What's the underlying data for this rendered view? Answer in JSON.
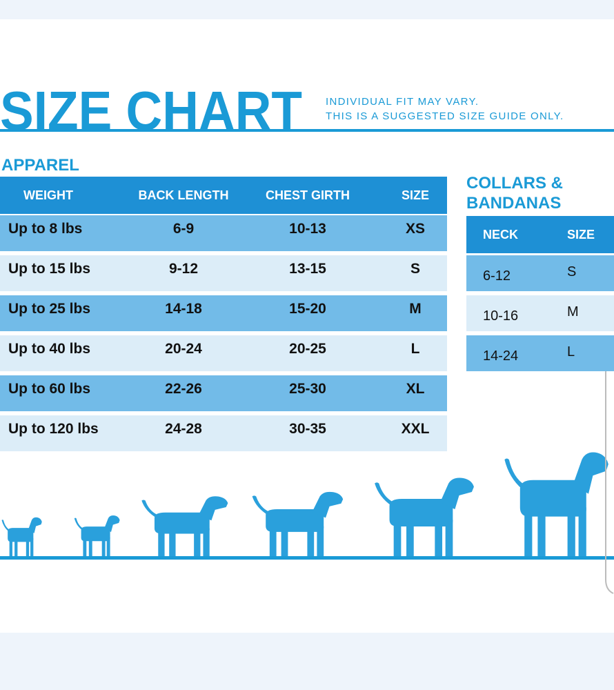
{
  "header": {
    "title": "SIZE CHART",
    "note_lines": [
      "INDIVIDUAL FIT MAY VARY.",
      "THIS IS A SUGGESTED SIZE GUIDE ONLY."
    ]
  },
  "apparel": {
    "title": "APPAREL",
    "columns": [
      "WEIGHT",
      "BACK LENGTH",
      "CHEST GIRTH",
      "SIZE"
    ],
    "rows": [
      [
        "Up to 8 lbs",
        "6-9",
        "10-13",
        "XS"
      ],
      [
        "Up to 15 lbs",
        "9-12",
        "13-15",
        "S"
      ],
      [
        "Up to 25 lbs",
        "14-18",
        "15-20",
        "M"
      ],
      [
        "Up to 40 lbs",
        "20-24",
        "20-25",
        "L"
      ],
      [
        "Up to 60 lbs",
        "22-26",
        "25-30",
        "XL"
      ],
      [
        "Up to 120 lbs",
        "24-28",
        "30-35",
        "XXL"
      ]
    ]
  },
  "collars": {
    "title_lines": [
      "COLLARS &",
      "BANDANAS"
    ],
    "columns": [
      "NECK",
      "SIZE"
    ],
    "rows": [
      [
        "6-12",
        "S"
      ],
      [
        "10-16",
        "M"
      ],
      [
        "14-24",
        "L"
      ]
    ]
  }
}
